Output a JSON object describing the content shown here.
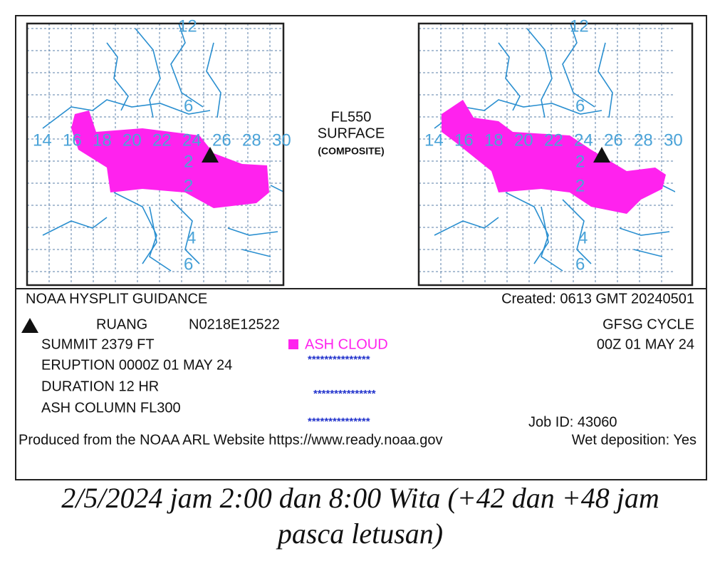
{
  "center_label": {
    "line1": "FL550",
    "line2": "SURFACE",
    "line3": "(COMPOSITE)"
  },
  "map_labels": {
    "lat": [
      "12",
      "6",
      "2",
      "2",
      "4",
      "6"
    ],
    "lon": [
      "14",
      "16",
      "18",
      "20",
      "22",
      "24",
      "26",
      "28",
      "30"
    ]
  },
  "info": {
    "title": "NOAA HYSPLIT GUIDANCE",
    "created": "Created: 0613 GMT 20240501",
    "volcano": "RUANG",
    "location": "N0218E12522",
    "cycle": "GFSG CYCLE",
    "cycle_time": "00Z 01 MAY 24",
    "summit": "SUMMIT 2379 FT",
    "eruption": "ERUPTION 0000Z 01 MAY 24",
    "duration": "DURATION 12 HR",
    "column": "ASH COLUMN FL300",
    "legend_ash": "ASH CLOUD",
    "star_rows": [
      "***************",
      "***************",
      "***************"
    ],
    "job_id": "Job ID: 43060",
    "produced": "Produced from the NOAA ARL Website https://www.ready.noaa.gov",
    "wet": "Wet deposition: Yes"
  },
  "caption": {
    "line1": "2/5/2024 jam 2:00 dan 8:00 Wita (+42 dan +48 jam",
    "line2": "pasca letusan)"
  }
}
